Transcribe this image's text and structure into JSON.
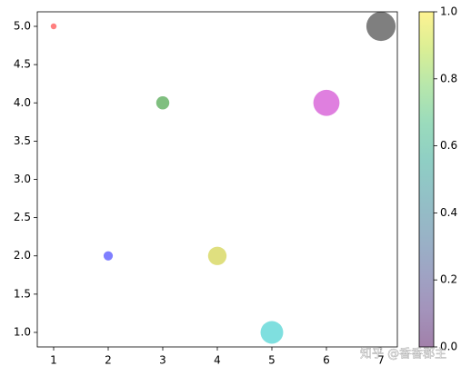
{
  "chart_data": {
    "type": "scatter",
    "x": [
      1,
      2,
      3,
      4,
      5,
      6,
      7
    ],
    "y": [
      5,
      2,
      4,
      2,
      1,
      4,
      5
    ],
    "sizes": [
      20,
      50,
      100,
      200,
      300,
      400,
      500
    ],
    "colors": [
      "red",
      "blue",
      "green",
      "#bfbf00",
      "#00bfbf",
      "#bf00bf",
      "black"
    ],
    "alpha": 0.5,
    "xlim": [
      0.7,
      7.3
    ],
    "xticks": [
      1,
      2,
      3,
      4,
      5,
      6,
      7
    ],
    "ylim": [
      0.81,
      5.19
    ],
    "yticks": [
      {
        "value": 1,
        "label": "1.0"
      },
      {
        "value": 1.5,
        "label": "1.5"
      },
      {
        "value": 2,
        "label": "2.0"
      },
      {
        "value": 2.5,
        "label": "2.5"
      },
      {
        "value": 3,
        "label": "3.0"
      },
      {
        "value": 3.5,
        "label": "3.5"
      },
      {
        "value": 4,
        "label": "4.0"
      },
      {
        "value": 4.5,
        "label": "4.5"
      },
      {
        "value": 5,
        "label": "5.0"
      }
    ],
    "colorbar": {
      "colormap": "viridis",
      "clim": [
        0,
        1
      ],
      "ticks": [
        {
          "value": 0,
          "label": "0.0"
        },
        {
          "value": 0.2,
          "label": "0.2"
        },
        {
          "value": 0.4,
          "label": "0.4"
        },
        {
          "value": 0.6,
          "label": "0.6"
        },
        {
          "value": 0.8,
          "label": "0.8"
        },
        {
          "value": 1,
          "label": "1.0"
        }
      ]
    },
    "watermark": "知乎 @香香郡主"
  }
}
